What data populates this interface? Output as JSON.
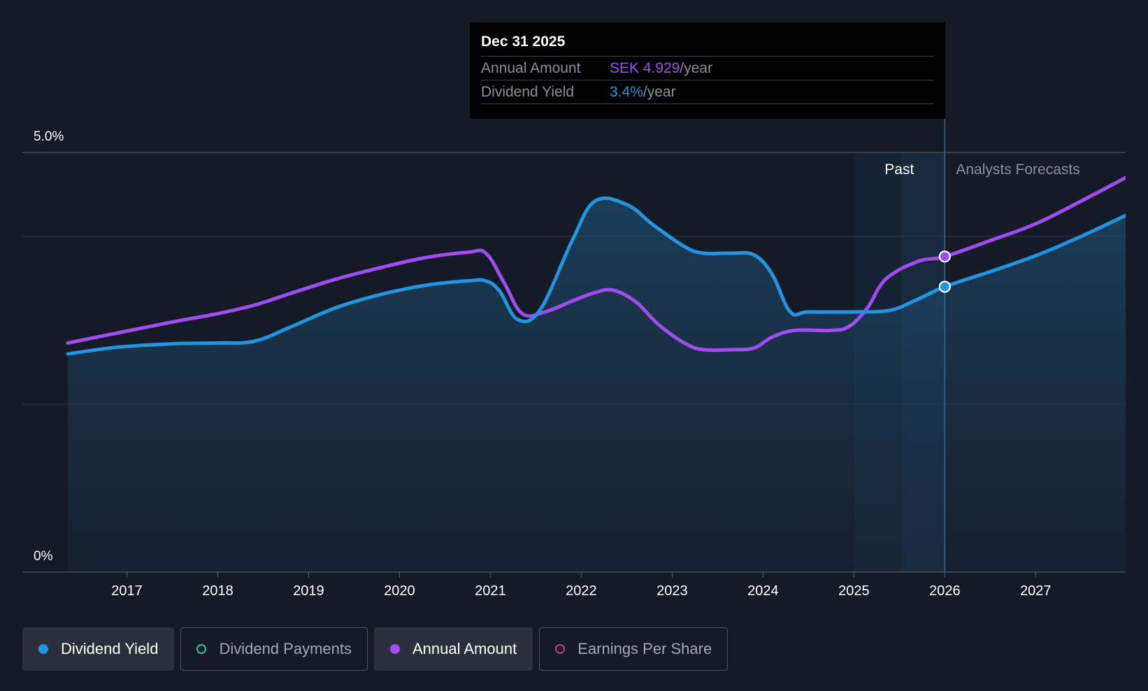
{
  "colors": {
    "background": "#151b26",
    "yield": "#2394df",
    "annual": "#a04cf0",
    "payments": "#3fc1b0",
    "eps": "#c0407a"
  },
  "tooltip": {
    "date": "Dec 31 2025",
    "rows": [
      {
        "label": "Annual Amount",
        "value": "SEK 4.929",
        "unit": "/year"
      },
      {
        "label": "Dividend Yield",
        "value": "3.4%",
        "unit": "/year"
      }
    ]
  },
  "regions": {
    "past": "Past",
    "forecast": "Analysts Forecasts"
  },
  "legend": [
    {
      "label": "Dividend Yield",
      "active": true
    },
    {
      "label": "Dividend Payments",
      "active": false
    },
    {
      "label": "Annual Amount",
      "active": true
    },
    {
      "label": "Earnings Per Share",
      "active": false
    }
  ],
  "chart_data": {
    "type": "area",
    "y_ticks": [
      "5.0%",
      "0%"
    ],
    "ylim": [
      0,
      5.0
    ],
    "xlim": [
      2015.85,
      2027.99
    ],
    "x_ticks": [
      "2017",
      "2018",
      "2019",
      "2020",
      "2021",
      "2022",
      "2023",
      "2024",
      "2025",
      "2026",
      "2027"
    ],
    "past_start": 2025.0,
    "forecast_start": 2025.52,
    "cursor_x": 2026.0,
    "legend_placement": "bottom-left",
    "series": [
      {
        "name": "Dividend Yield",
        "values": [
          [
            2016.35,
            2.6
          ],
          [
            2016.9,
            2.68
          ],
          [
            2017.5,
            2.72
          ],
          [
            2018.0,
            2.73
          ],
          [
            2018.4,
            2.75
          ],
          [
            2018.8,
            2.92
          ],
          [
            2019.3,
            3.15
          ],
          [
            2019.8,
            3.31
          ],
          [
            2020.3,
            3.42
          ],
          [
            2020.75,
            3.47
          ],
          [
            2020.95,
            3.47
          ],
          [
            2021.1,
            3.35
          ],
          [
            2021.3,
            3.01
          ],
          [
            2021.55,
            3.13
          ],
          [
            2021.9,
            3.95
          ],
          [
            2022.15,
            4.42
          ],
          [
            2022.5,
            4.38
          ],
          [
            2022.8,
            4.13
          ],
          [
            2023.15,
            3.87
          ],
          [
            2023.35,
            3.8
          ],
          [
            2023.65,
            3.8
          ],
          [
            2023.9,
            3.78
          ],
          [
            2024.1,
            3.55
          ],
          [
            2024.3,
            3.1
          ],
          [
            2024.5,
            3.1
          ],
          [
            2025.0,
            3.1
          ],
          [
            2025.4,
            3.12
          ],
          [
            2025.7,
            3.25
          ],
          [
            2026.0,
            3.4
          ],
          [
            2026.5,
            3.58
          ],
          [
            2027.0,
            3.77
          ],
          [
            2027.5,
            4.0
          ],
          [
            2027.99,
            4.25
          ]
        ]
      },
      {
        "name": "Annual Amount",
        "values": [
          [
            2016.35,
            2.73
          ],
          [
            2016.9,
            2.85
          ],
          [
            2017.5,
            2.98
          ],
          [
            2018.0,
            3.08
          ],
          [
            2018.4,
            3.18
          ],
          [
            2018.8,
            3.32
          ],
          [
            2019.3,
            3.49
          ],
          [
            2019.8,
            3.63
          ],
          [
            2020.3,
            3.75
          ],
          [
            2020.75,
            3.81
          ],
          [
            2020.95,
            3.8
          ],
          [
            2021.15,
            3.45
          ],
          [
            2021.35,
            3.08
          ],
          [
            2021.6,
            3.1
          ],
          [
            2021.9,
            3.23
          ],
          [
            2022.15,
            3.33
          ],
          [
            2022.35,
            3.36
          ],
          [
            2022.6,
            3.22
          ],
          [
            2022.85,
            2.95
          ],
          [
            2023.15,
            2.72
          ],
          [
            2023.35,
            2.65
          ],
          [
            2023.65,
            2.65
          ],
          [
            2023.9,
            2.67
          ],
          [
            2024.1,
            2.8
          ],
          [
            2024.35,
            2.88
          ],
          [
            2024.75,
            2.88
          ],
          [
            2024.95,
            2.93
          ],
          [
            2025.15,
            3.15
          ],
          [
            2025.35,
            3.49
          ],
          [
            2025.7,
            3.7
          ],
          [
            2026.0,
            3.76
          ],
          [
            2026.5,
            3.95
          ],
          [
            2027.0,
            4.15
          ],
          [
            2027.5,
            4.42
          ],
          [
            2027.99,
            4.7
          ]
        ]
      }
    ]
  }
}
